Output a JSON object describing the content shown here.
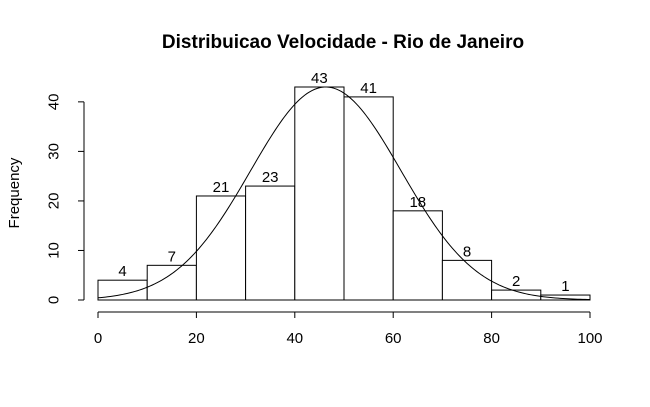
{
  "chart_data": {
    "type": "bar",
    "title": "Distribuicao Velocidade - Rio de Janeiro",
    "xlabel": "",
    "ylabel": "Frequency",
    "bins": [
      {
        "start": 0,
        "end": 10,
        "value": 4
      },
      {
        "start": 10,
        "end": 20,
        "value": 7
      },
      {
        "start": 20,
        "end": 30,
        "value": 21
      },
      {
        "start": 30,
        "end": 40,
        "value": 23
      },
      {
        "start": 40,
        "end": 50,
        "value": 43
      },
      {
        "start": 50,
        "end": 60,
        "value": 41
      },
      {
        "start": 60,
        "end": 70,
        "value": 18
      },
      {
        "start": 70,
        "end": 80,
        "value": 8
      },
      {
        "start": 80,
        "end": 90,
        "value": 2
      },
      {
        "start": 90,
        "end": 100,
        "value": 1
      }
    ],
    "xlim": [
      0,
      100
    ],
    "ylim": [
      0,
      43
    ],
    "x_ticks": [
      0,
      20,
      40,
      60,
      80,
      100
    ],
    "y_ticks": [
      0,
      10,
      20,
      30,
      40
    ],
    "grid": false,
    "density_curve": {
      "type": "normal",
      "mean": 46.3,
      "sd": 15.3,
      "peak": 43
    }
  }
}
